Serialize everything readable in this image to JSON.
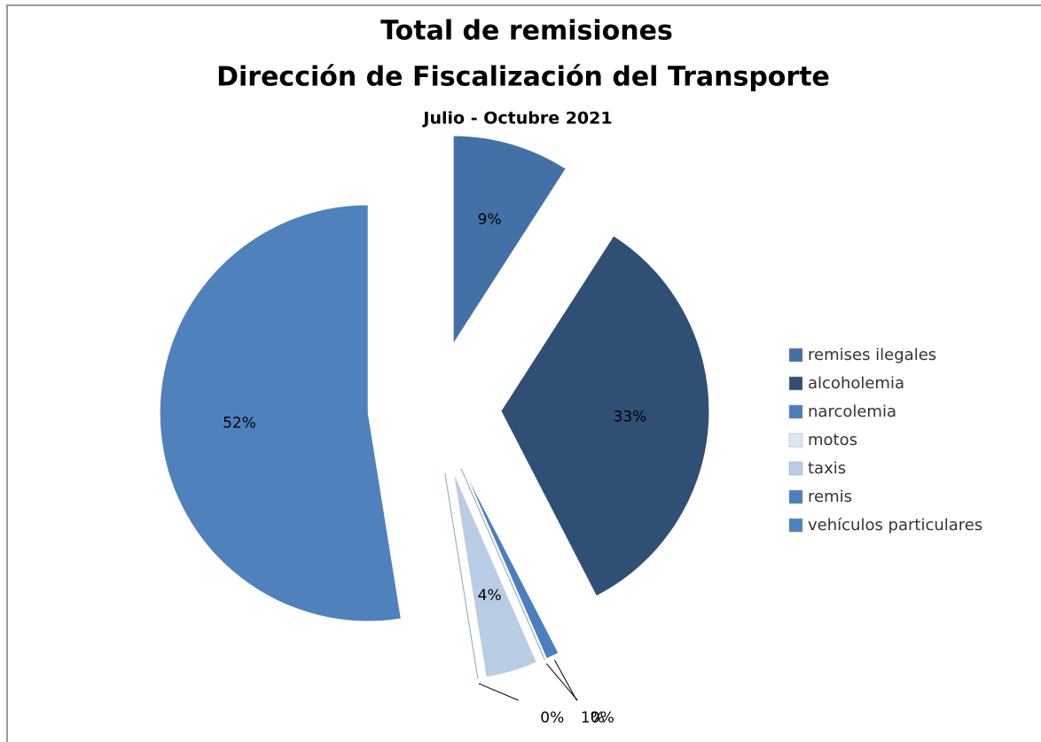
{
  "chart_data": {
    "type": "pie",
    "title": "Total de remisiones",
    "subtitle": "Dirección de Fiscalización del Transporte",
    "period": "Julio - Octubre 2021",
    "categories": [
      "remises ilegales",
      "alcoholemia",
      "narcolemia",
      "motos",
      "taxis",
      "remis",
      "vehículos particulares"
    ],
    "values": [
      9,
      33,
      1,
      0,
      4,
      0,
      52
    ],
    "value_labels": [
      "9%",
      "33%",
      "1%",
      "0%",
      "4%",
      "0%",
      "52%"
    ],
    "colors": [
      "#4470a8",
      "#2f4f75",
      "#4a7ebf",
      "#dde6f3",
      "#b8cce4",
      "#4a7ebf",
      "#4f81bd"
    ],
    "legend": "right"
  }
}
